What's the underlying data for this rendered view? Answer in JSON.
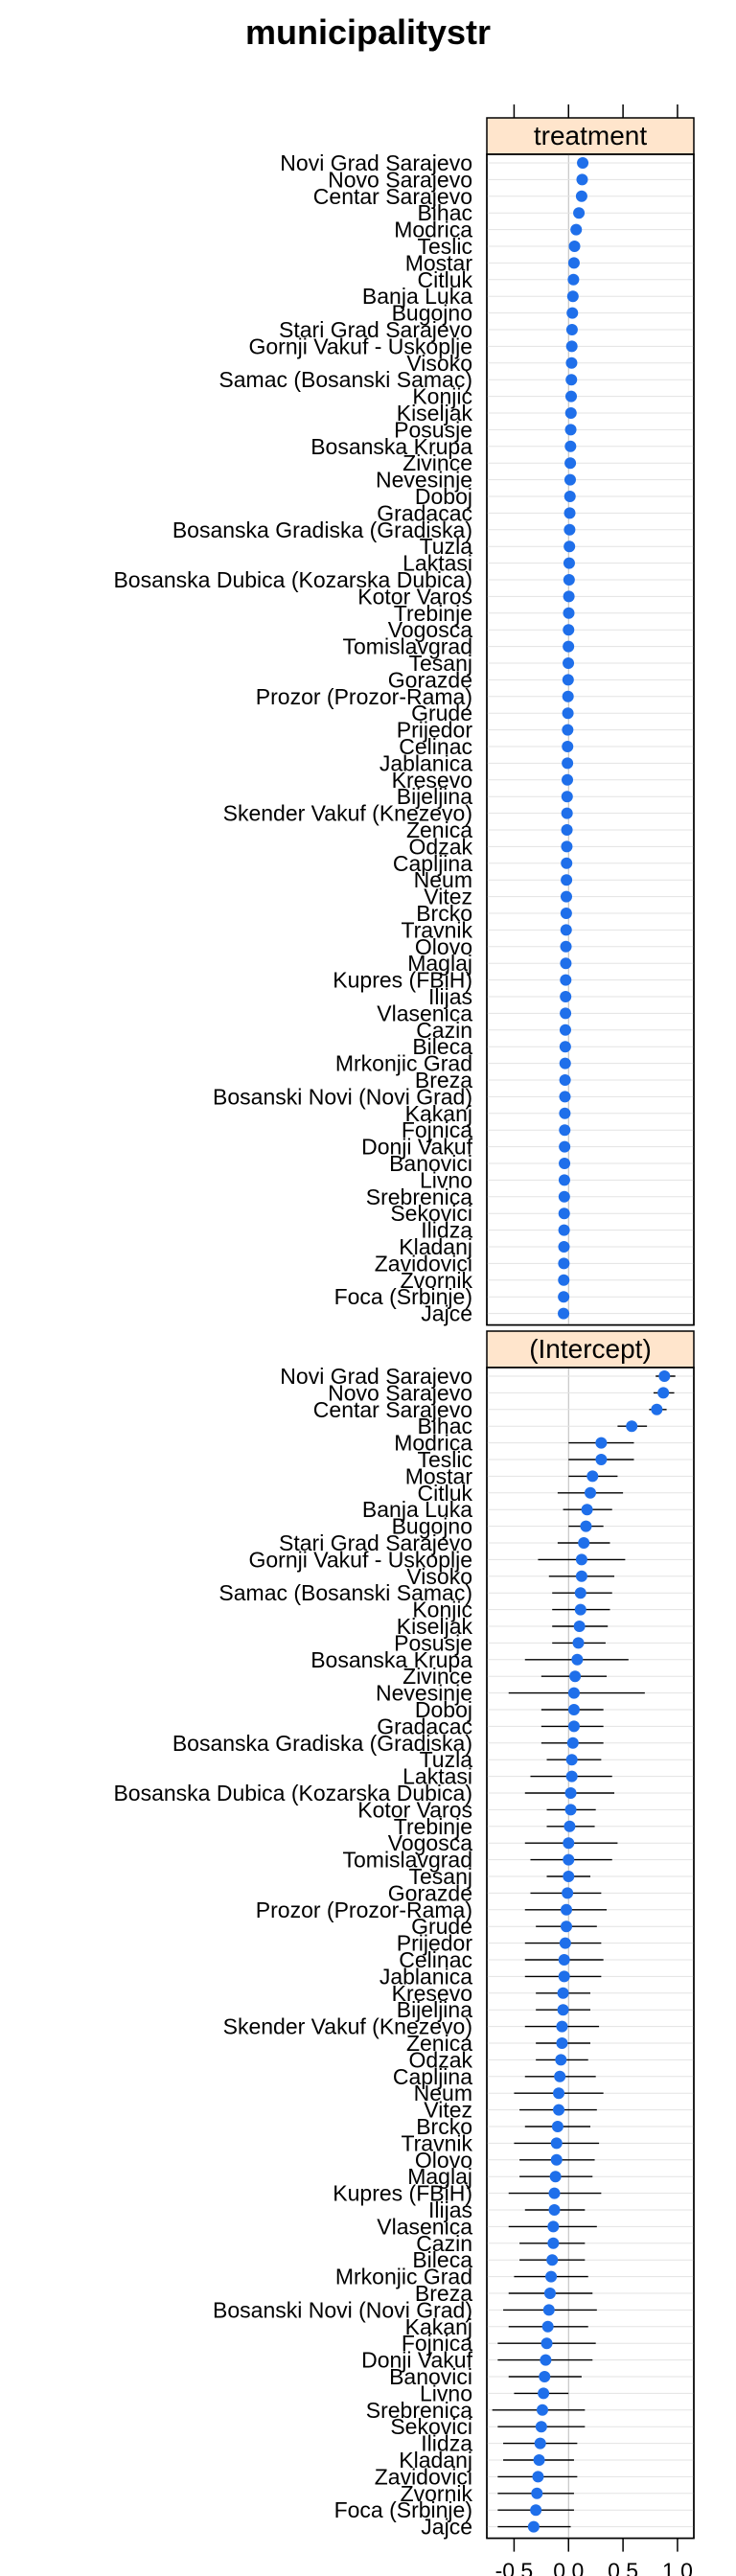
{
  "chart_data": {
    "type": "scatter",
    "title": "municipalitystr",
    "xlabel": "",
    "ylabel": "",
    "xlim": [
      -0.75,
      1.15
    ],
    "x_ticks": [
      "-0.5",
      "0.0",
      "0.5",
      "1.0"
    ],
    "grid": true,
    "colors": {
      "point": "#1f6fea",
      "strip": "#ffe5cc",
      "gridline": "#e3e3e3",
      "errorbar": "#000000",
      "zero_line": "#bbbbbb"
    },
    "categories": [
      "Novi Grad Sarajevo",
      "Novo Sarajevo",
      "Centar Sarajevo",
      "Bihac",
      "Modrica",
      "Teslic",
      "Mostar",
      "Citluk",
      "Banja Luka",
      "Bugojno",
      "Stari Grad Sarajevo",
      "Gornji Vakuf - Uskoplje",
      "Visoko",
      "Samac (Bosanski Samac)",
      "Konjic",
      "Kiseljak",
      "Posusje",
      "Bosanska Krupa",
      "Zivince",
      "Nevesinje",
      "Doboj",
      "Gradacac",
      "Bosanska Gradiska (Gradiska)",
      "Tuzla",
      "Laktasi",
      "Bosanska Dubica (Kozarska Dubica)",
      "Kotor Varos",
      "Trebinje",
      "Vogosca",
      "Tomislavgrad",
      "Tesanj",
      "Gorazde",
      "Prozor (Prozor-Rama)",
      "Grude",
      "Prijedor",
      "Celinac",
      "Jablanica",
      "Kresevo",
      "Bijeljina",
      "Skender Vakuf (Knezevo)",
      "Zenica",
      "Odzak",
      "Capljina",
      "Neum",
      "Vitez",
      "Brcko",
      "Travnik",
      "Olovo",
      "Maglaj",
      "Kupres (FBiH)",
      "Ilijas",
      "Vlasenica",
      "Cazin",
      "Bileca",
      "Mrkonjic Grad",
      "Breza",
      "Bosanski Novi (Novi Grad)",
      "Kakanj",
      "Fojnica",
      "Donji Vakuf",
      "Banovici",
      "Livno",
      "Srebrenica",
      "Sekovici",
      "Ilidza",
      "Kladanj",
      "Zavidovici",
      "Zvornik",
      "Foca (Srbinje)",
      "Jajce"
    ],
    "panels": [
      {
        "name": "treatment",
        "values": [
          0.13,
          0.125,
          0.12,
          0.095,
          0.07,
          0.055,
          0.05,
          0.045,
          0.04,
          0.035,
          0.032,
          0.03,
          0.028,
          0.026,
          0.024,
          0.022,
          0.02,
          0.018,
          0.016,
          0.015,
          0.013,
          0.011,
          0.01,
          0.008,
          0.006,
          0.005,
          0.003,
          0.002,
          0.0,
          -0.001,
          -0.002,
          -0.004,
          -0.005,
          -0.006,
          -0.008,
          -0.009,
          -0.01,
          -0.011,
          -0.013,
          -0.014,
          -0.015,
          -0.016,
          -0.018,
          -0.019,
          -0.02,
          -0.021,
          -0.022,
          -0.024,
          -0.025,
          -0.026,
          -0.027,
          -0.028,
          -0.029,
          -0.03,
          -0.031,
          -0.032,
          -0.033,
          -0.034,
          -0.035,
          -0.036,
          -0.037,
          -0.038,
          -0.039,
          -0.04,
          -0.041,
          -0.042,
          -0.043,
          -0.044,
          -0.045,
          -0.046
        ],
        "lower": [
          0.1,
          0.1,
          0.1,
          0.07,
          0.04,
          0.03,
          0.03,
          0.02,
          0.02,
          0.015,
          0.012,
          0.01,
          0.008,
          0.006,
          0.004,
          0.002,
          0.0,
          -0.002,
          -0.004,
          -0.035,
          -0.007,
          -0.009,
          -0.01,
          -0.012,
          -0.014,
          -0.015,
          -0.017,
          -0.018,
          -0.02,
          -0.021,
          -0.022,
          -0.024,
          -0.025,
          -0.026,
          -0.028,
          -0.029,
          -0.03,
          -0.031,
          -0.033,
          -0.034,
          -0.035,
          -0.036,
          -0.038,
          -0.039,
          -0.04,
          -0.041,
          -0.042,
          -0.044,
          -0.045,
          -0.046,
          -0.047,
          -0.048,
          -0.049,
          -0.05,
          -0.051,
          -0.052,
          -0.053,
          -0.054,
          -0.055,
          -0.056,
          -0.057,
          -0.058,
          -0.059,
          -0.06,
          -0.061,
          -0.062,
          -0.063,
          -0.064,
          -0.065,
          -0.066
        ],
        "upper": [
          0.16,
          0.15,
          0.14,
          0.12,
          0.1,
          0.08,
          0.07,
          0.07,
          0.06,
          0.055,
          0.052,
          0.05,
          0.048,
          0.046,
          0.044,
          0.042,
          0.04,
          0.038,
          0.036,
          0.03,
          0.033,
          0.031,
          0.03,
          0.028,
          0.026,
          0.025,
          0.023,
          0.022,
          0.02,
          0.019,
          0.018,
          0.016,
          0.015,
          0.014,
          0.012,
          0.011,
          0.01,
          0.009,
          0.007,
          0.006,
          0.005,
          0.004,
          0.002,
          0.001,
          0.0,
          -0.001,
          -0.002,
          -0.004,
          -0.005,
          -0.006,
          -0.007,
          -0.008,
          -0.009,
          -0.01,
          -0.011,
          -0.012,
          -0.013,
          -0.014,
          -0.015,
          -0.016,
          -0.017,
          -0.018,
          -0.019,
          -0.02,
          -0.021,
          -0.022,
          -0.023,
          -0.024,
          -0.025,
          -0.026
        ]
      },
      {
        "name": "(Intercept)",
        "values": [
          0.88,
          0.87,
          0.81,
          0.58,
          0.3,
          0.3,
          0.22,
          0.2,
          0.17,
          0.16,
          0.14,
          0.12,
          0.12,
          0.11,
          0.11,
          0.1,
          0.09,
          0.08,
          0.06,
          0.05,
          0.05,
          0.05,
          0.04,
          0.03,
          0.03,
          0.02,
          0.02,
          0.01,
          0.0,
          0.0,
          0.0,
          -0.01,
          -0.02,
          -0.02,
          -0.03,
          -0.04,
          -0.04,
          -0.05,
          -0.05,
          -0.06,
          -0.06,
          -0.07,
          -0.08,
          -0.09,
          -0.09,
          -0.1,
          -0.11,
          -0.11,
          -0.12,
          -0.13,
          -0.13,
          -0.14,
          -0.14,
          -0.15,
          -0.16,
          -0.17,
          -0.18,
          -0.19,
          -0.2,
          -0.21,
          -0.22,
          -0.23,
          -0.24,
          -0.25,
          -0.26,
          -0.27,
          -0.28,
          -0.29,
          -0.3,
          -0.32
        ],
        "lower": [
          0.8,
          0.78,
          0.74,
          0.45,
          0.0,
          0.0,
          0.0,
          -0.1,
          -0.05,
          0.0,
          -0.1,
          -0.28,
          -0.18,
          -0.15,
          -0.15,
          -0.15,
          -0.15,
          -0.4,
          -0.25,
          -0.55,
          -0.25,
          -0.25,
          -0.25,
          -0.2,
          -0.35,
          -0.4,
          -0.2,
          -0.2,
          -0.4,
          -0.35,
          -0.2,
          -0.35,
          -0.4,
          -0.3,
          -0.4,
          -0.4,
          -0.4,
          -0.3,
          -0.3,
          -0.4,
          -0.3,
          -0.3,
          -0.4,
          -0.5,
          -0.45,
          -0.4,
          -0.5,
          -0.45,
          -0.45,
          -0.55,
          -0.4,
          -0.55,
          -0.45,
          -0.45,
          -0.5,
          -0.55,
          -0.6,
          -0.55,
          -0.65,
          -0.65,
          -0.55,
          -0.5,
          -0.7,
          -0.65,
          -0.6,
          -0.6,
          -0.65,
          -0.65,
          -0.65,
          -0.65
        ],
        "upper": [
          0.98,
          0.97,
          0.9,
          0.72,
          0.6,
          0.6,
          0.45,
          0.5,
          0.4,
          0.32,
          0.38,
          0.52,
          0.42,
          0.4,
          0.38,
          0.36,
          0.34,
          0.55,
          0.35,
          0.7,
          0.32,
          0.32,
          0.32,
          0.3,
          0.4,
          0.42,
          0.25,
          0.24,
          0.45,
          0.4,
          0.2,
          0.3,
          0.35,
          0.26,
          0.3,
          0.32,
          0.3,
          0.2,
          0.2,
          0.28,
          0.2,
          0.18,
          0.25,
          0.32,
          0.26,
          0.2,
          0.28,
          0.24,
          0.22,
          0.3,
          0.15,
          0.26,
          0.15,
          0.15,
          0.18,
          0.22,
          0.26,
          0.18,
          0.25,
          0.22,
          0.12,
          0.0,
          0.15,
          0.15,
          0.08,
          0.05,
          0.08,
          0.05,
          0.05,
          0.02
        ]
      }
    ]
  }
}
